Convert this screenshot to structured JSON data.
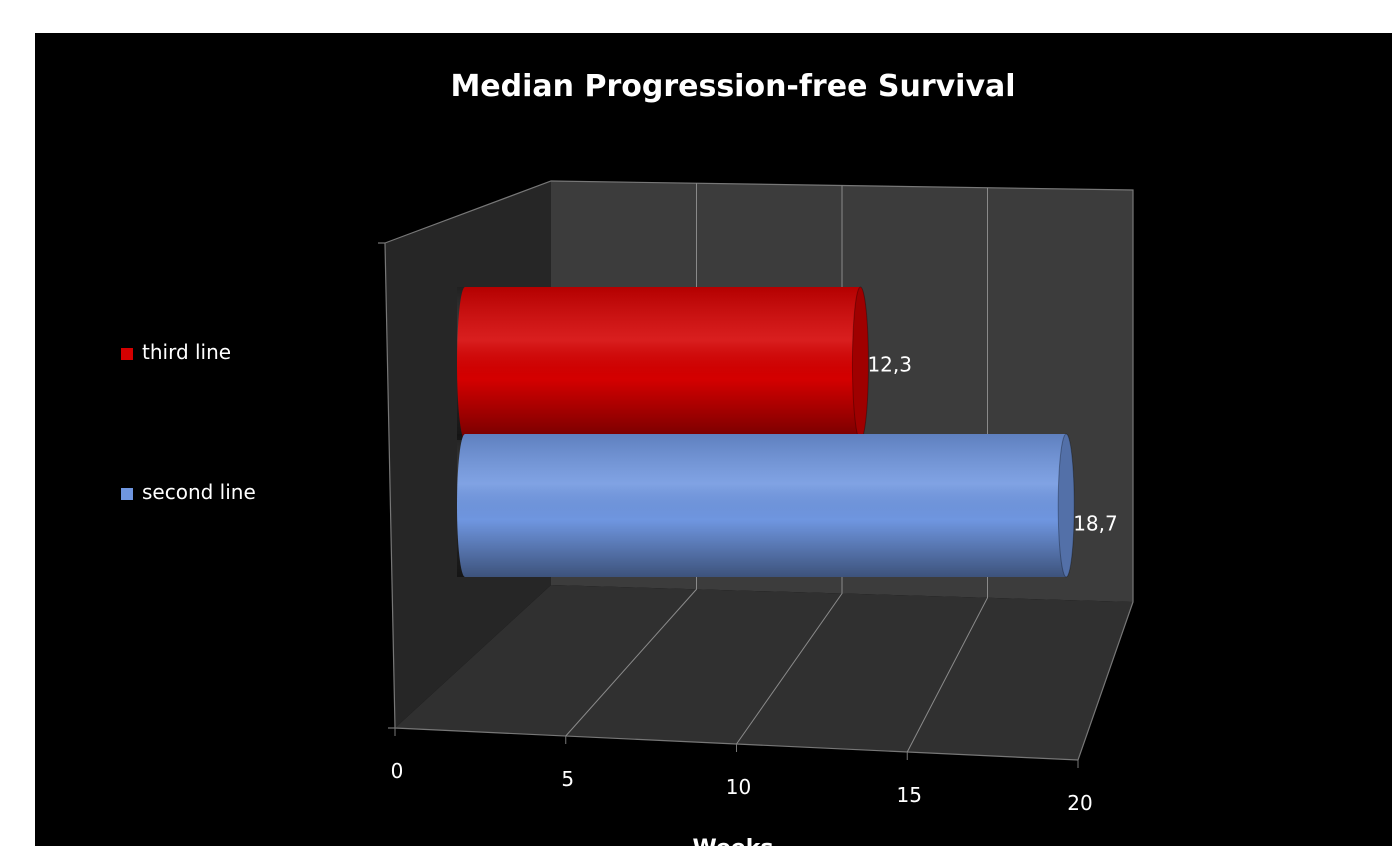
{
  "chart_data": {
    "type": "bar",
    "orientation": "horizontal",
    "title": "Median Progression-free Survival",
    "x_label": "Weeks",
    "categories": [
      null
    ],
    "series": [
      {
        "name": "third line",
        "color": "#d40000",
        "values": [
          12.3
        ],
        "value_labels": [
          "12,3"
        ]
      },
      {
        "name": "second line",
        "color": "#6f96e0",
        "values": [
          18.7
        ],
        "value_labels": [
          "18,7"
        ]
      }
    ],
    "xlim": [
      0,
      20
    ],
    "xticks": [
      0,
      5,
      10,
      15,
      20
    ],
    "grid": true,
    "legend": "left"
  }
}
